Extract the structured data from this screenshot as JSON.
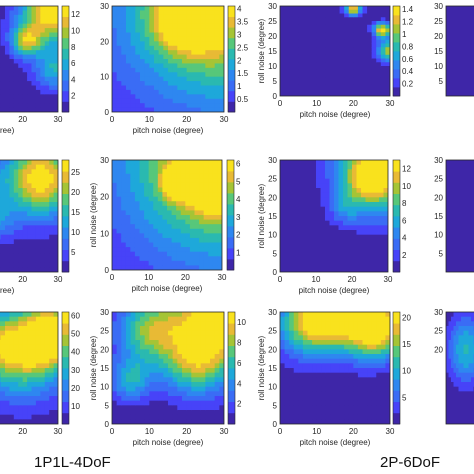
{
  "captions": [
    "1P1L-4DoF",
    "2P-6DoF"
  ],
  "palette": [
    "#3e26a8",
    "#4743f8",
    "#3a6cf5",
    "#2e87f0",
    "#1ea8da",
    "#2ab9b0",
    "#57c77a",
    "#a5c435",
    "#e8ba35",
    "#f9e21d"
  ],
  "chart_data": [
    {
      "id": "r1c1",
      "type": "heatmap",
      "xlabel": "ree)",
      "ylabel": "",
      "xticks": [
        20,
        30
      ],
      "yticks": [
        20,
        30
      ],
      "colorbar": [
        2,
        4,
        6,
        8,
        10,
        12
      ],
      "vmax": 13,
      "peaks": [
        {
          "x": 28,
          "y": 28,
          "value": 13,
          "spread": 6
        },
        {
          "x": 21,
          "y": 20,
          "value": 9,
          "spread": 3
        },
        {
          "x": 29,
          "y": 12,
          "value": 6,
          "spread": 4
        }
      ]
    },
    {
      "id": "r1c2",
      "type": "heatmap",
      "xlabel": "pitch noise (degree)",
      "ylabel": "",
      "xticks": [
        0,
        10,
        20,
        30
      ],
      "yticks": [
        0,
        10,
        20,
        30
      ],
      "colorbar": [
        0.5,
        1,
        1.5,
        2,
        2.5,
        3,
        3.5,
        4
      ],
      "vmax": 4.1,
      "peaks": [
        {
          "x": 30,
          "y": 30,
          "value": 4,
          "spread": 19
        },
        {
          "x": 20,
          "y": 26,
          "value": 2.6,
          "spread": 6
        }
      ]
    },
    {
      "id": "r1c3",
      "type": "heatmap",
      "xlabel": "pitch noise (degree)",
      "ylabel": "roll noise (degree)",
      "xticks": [
        0,
        10,
        20,
        30
      ],
      "yticks": [
        0,
        5,
        10,
        15,
        20,
        25,
        30
      ],
      "colorbar": [
        0.2,
        0.4,
        0.6,
        0.8,
        1,
        1.2,
        1.4
      ],
      "vmax": 1.45,
      "peaks": [
        {
          "x": 20,
          "y": 29,
          "value": 1.3,
          "spread": 1.5
        },
        {
          "x": 28,
          "y": 22,
          "value": 1.4,
          "spread": 1.7
        },
        {
          "x": 30,
          "y": 15,
          "value": 1.1,
          "spread": 2.5
        }
      ]
    },
    {
      "id": "r2c1",
      "type": "heatmap",
      "xlabel": "ree)",
      "ylabel": "",
      "xticks": [
        20,
        30
      ],
      "yticks": [
        20,
        30
      ],
      "colorbar": [
        5,
        10,
        15,
        20,
        25
      ],
      "vmax": 28,
      "peaks": [
        {
          "x": 25,
          "y": 25,
          "value": 28,
          "spread": 7
        },
        {
          "x": 8,
          "y": 24,
          "value": 12,
          "spread": 4
        },
        {
          "x": 12,
          "y": 14,
          "value": 10,
          "spread": 4
        }
      ]
    },
    {
      "id": "r2c2",
      "type": "heatmap",
      "xlabel": "pitch noise (degree)",
      "ylabel": "roll noise (degree)",
      "xticks": [
        0,
        10,
        20,
        30
      ],
      "yticks": [
        0,
        10,
        20,
        30
      ],
      "colorbar": [
        1,
        2,
        3,
        4,
        5,
        6
      ],
      "vmax": 6.2,
      "peaks": [
        {
          "x": 30,
          "y": 30,
          "value": 6,
          "spread": 19
        },
        {
          "x": 28,
          "y": 24,
          "value": 5.5,
          "spread": 5
        },
        {
          "x": 18,
          "y": 24,
          "value": 4,
          "spread": 3
        }
      ]
    },
    {
      "id": "r2c3",
      "type": "heatmap",
      "xlabel": "pitch noise (degree)",
      "ylabel": "roll noise (degree)",
      "xticks": [
        0,
        10,
        20,
        30
      ],
      "yticks": [
        0,
        5,
        10,
        15,
        20,
        25,
        30
      ],
      "colorbar": [
        2,
        4,
        6,
        8,
        10,
        12
      ],
      "vmax": 13,
      "peaks": [
        {
          "x": 30,
          "y": 30,
          "value": 12,
          "spread": 9
        },
        {
          "x": 24,
          "y": 24,
          "value": 6,
          "spread": 5
        },
        {
          "x": 18,
          "y": 17,
          "value": 3,
          "spread": 3
        }
      ]
    },
    {
      "id": "r3c1",
      "type": "heatmap",
      "xlabel": "",
      "ylabel": "",
      "xticks": [
        20,
        30
      ],
      "yticks": [
        20,
        30
      ],
      "colorbar": [
        10,
        20,
        30,
        40,
        50,
        60
      ],
      "vmax": 62,
      "peaks": [
        {
          "x": 28,
          "y": 24,
          "value": 60,
          "spread": 6
        },
        {
          "x": 20,
          "y": 18,
          "value": 40,
          "spread": 8
        },
        {
          "x": 12,
          "y": 22,
          "value": 30,
          "spread": 6
        }
      ]
    },
    {
      "id": "r3c2",
      "type": "heatmap",
      "xlabel": "pitch noise (degree)",
      "ylabel": "roll noise (degree)",
      "xticks": [
        0,
        10,
        20,
        30
      ],
      "yticks": [
        0,
        5,
        10,
        15,
        20,
        25,
        30
      ],
      "colorbar": [
        2,
        4,
        6,
        8,
        10
      ],
      "vmax": 11,
      "peaks": [
        {
          "x": 28,
          "y": 28,
          "value": 11,
          "spread": 9
        },
        {
          "x": 10,
          "y": 25,
          "value": 7,
          "spread": 6
        },
        {
          "x": 22,
          "y": 16,
          "value": 6,
          "spread": 6
        },
        {
          "x": 5,
          "y": 12,
          "value": 5,
          "spread": 4
        }
      ]
    },
    {
      "id": "r3c3",
      "type": "heatmap",
      "xlabel": "pitch noise (degree)",
      "ylabel": "roll noise (degree)",
      "xticks": [
        0,
        10,
        20,
        30
      ],
      "yticks": [
        0,
        5,
        10,
        15,
        20,
        25,
        30
      ],
      "colorbar": [
        5,
        10,
        15,
        20
      ],
      "vmax": 21,
      "peaks": [
        {
          "x": 20,
          "y": 30,
          "value": 20,
          "spread": 7
        },
        {
          "x": 8,
          "y": 27,
          "value": 17,
          "spread": 6
        },
        {
          "x": 27,
          "y": 25,
          "value": 16,
          "spread": 5
        }
      ]
    },
    {
      "id": "r1c4",
      "type": "heatmap",
      "xlabel": "",
      "ylabel": "",
      "xticks": [],
      "yticks": [
        30,
        25,
        20,
        15,
        10,
        5
      ],
      "colorbar": [],
      "vmax": 1,
      "peaks": []
    },
    {
      "id": "r2c4",
      "type": "heatmap",
      "xlabel": "",
      "ylabel": "",
      "xticks": [],
      "yticks": [
        30,
        25,
        20,
        15,
        10,
        5
      ],
      "colorbar": [],
      "vmax": 1,
      "peaks": []
    },
    {
      "id": "r3c4",
      "type": "heatmap",
      "xlabel": "",
      "ylabel": "",
      "xticks": [],
      "yticks": [
        30,
        25,
        20
      ],
      "colorbar": [],
      "vmax": 1,
      "peaks": [
        {
          "x": 10,
          "y": 20,
          "value": 0.5,
          "spread": 6
        }
      ]
    }
  ]
}
